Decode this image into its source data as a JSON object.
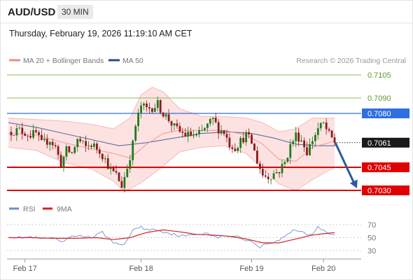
{
  "header": {
    "symbol": "AUD/USD",
    "timeframe": "30 MIN",
    "datetime": "Thursday, February 19, 2026 11:19:10 AM CET"
  },
  "legend": {
    "ma20_label": "MA 20 + Bollinger Bands",
    "ma50_label": "MA 50",
    "credit": "Research © 2026 Trading Central",
    "rsi_label": "RSI",
    "rsi_ma_label": "9MA"
  },
  "colors": {
    "ma20": "#f08a8a",
    "ma50": "#2a4a8a",
    "band_fill": "#fcd8d8",
    "up_candle": "#1e7a1e",
    "down_candle": "#8b1a1a",
    "support": "#e00000",
    "pivot": "#2f6fe0",
    "resistance": "#86c060",
    "current_price_tag": "#1a1a1a",
    "arrow": "#2e5aa0",
    "rsi": "#6b8fd6",
    "rsi_ma": "#d82020"
  },
  "chart_data": [
    {
      "type": "candlestick",
      "instrument": "AUD/USD",
      "interval": "30 MIN",
      "ylim": [
        0.7025,
        0.7112
      ],
      "x_ticks": [
        "Feb 17",
        "Feb 18",
        "Feb 19",
        "Feb 20"
      ],
      "levels": [
        {
          "value": 0.7105,
          "label": "0.7105",
          "role": "resistance"
        },
        {
          "value": 0.709,
          "label": "0.7090",
          "role": "resistance"
        },
        {
          "value": 0.708,
          "label": "0.7080",
          "role": "pivot"
        },
        {
          "value": 0.7061,
          "label": "0.7061",
          "role": "last"
        },
        {
          "value": 0.7045,
          "label": "0.7045",
          "role": "support"
        },
        {
          "value": 0.703,
          "label": "0.7030",
          "role": "support"
        }
      ],
      "last_price": 0.7061,
      "projection": {
        "from": 0.7061,
        "to": 0.703
      },
      "close_path": [
        [
          0,
          0.7068
        ],
        [
          4,
          0.7069
        ],
        [
          8,
          0.7066
        ],
        [
          10,
          0.7067
        ],
        [
          12,
          0.706
        ],
        [
          15,
          0.7063
        ],
        [
          17,
          0.7058
        ],
        [
          19,
          0.7047
        ],
        [
          21,
          0.7056
        ],
        [
          23,
          0.7054
        ],
        [
          25,
          0.7063
        ],
        [
          28,
          0.7058
        ],
        [
          30,
          0.706
        ],
        [
          33,
          0.7056
        ],
        [
          35,
          0.705
        ],
        [
          37,
          0.7043
        ],
        [
          39,
          0.704
        ],
        [
          41,
          0.7033
        ],
        [
          43,
          0.7045
        ],
        [
          45,
          0.706
        ],
        [
          46,
          0.7072
        ],
        [
          48,
          0.7085
        ],
        [
          50,
          0.7083
        ],
        [
          52,
          0.7084
        ],
        [
          54,
          0.7086
        ],
        [
          56,
          0.708
        ],
        [
          58,
          0.7076
        ],
        [
          60,
          0.7071
        ],
        [
          62,
          0.7068
        ],
        [
          64,
          0.7066
        ],
        [
          66,
          0.7066
        ],
        [
          68,
          0.7065
        ],
        [
          70,
          0.7068
        ],
        [
          72,
          0.7072
        ],
        [
          74,
          0.7076
        ],
        [
          76,
          0.707
        ],
        [
          78,
          0.7068
        ],
        [
          80,
          0.706
        ],
        [
          82,
          0.7058
        ],
        [
          84,
          0.7062
        ],
        [
          86,
          0.7066
        ],
        [
          88,
          0.7061
        ],
        [
          90,
          0.7049
        ],
        [
          92,
          0.704
        ],
        [
          94,
          0.7039
        ],
        [
          96,
          0.7041
        ],
        [
          98,
          0.7043
        ],
        [
          100,
          0.7048
        ],
        [
          102,
          0.7059
        ],
        [
          104,
          0.7066
        ],
        [
          106,
          0.7063
        ],
        [
          108,
          0.7055
        ],
        [
          110,
          0.7063
        ],
        [
          112,
          0.707
        ],
        [
          114,
          0.7073
        ],
        [
          116,
          0.7066
        ],
        [
          118,
          0.7061
        ]
      ],
      "ma20_path": [
        [
          0,
          0.7067
        ],
        [
          10,
          0.7066
        ],
        [
          20,
          0.7061
        ],
        [
          30,
          0.7057
        ],
        [
          38,
          0.7054
        ],
        [
          44,
          0.7051
        ],
        [
          50,
          0.706
        ],
        [
          56,
          0.7067
        ],
        [
          62,
          0.7069
        ],
        [
          70,
          0.7069
        ],
        [
          78,
          0.7069
        ],
        [
          86,
          0.7066
        ],
        [
          92,
          0.706
        ],
        [
          98,
          0.705
        ],
        [
          104,
          0.7049
        ],
        [
          110,
          0.7058
        ],
        [
          118,
          0.7062
        ]
      ],
      "ma50_path": [
        [
          0,
          0.7074
        ],
        [
          10,
          0.7071
        ],
        [
          20,
          0.7067
        ],
        [
          30,
          0.7063
        ],
        [
          40,
          0.7059
        ],
        [
          50,
          0.7061
        ],
        [
          60,
          0.7064
        ],
        [
          70,
          0.7067
        ],
        [
          80,
          0.7068
        ],
        [
          88,
          0.7067
        ],
        [
          96,
          0.7064
        ],
        [
          104,
          0.706
        ],
        [
          112,
          0.7059
        ],
        [
          118,
          0.7059
        ]
      ],
      "bollinger_upper_path": [
        [
          0,
          0.7077
        ],
        [
          10,
          0.7076
        ],
        [
          20,
          0.7075
        ],
        [
          30,
          0.7073
        ],
        [
          38,
          0.707
        ],
        [
          44,
          0.7077
        ],
        [
          48,
          0.7092
        ],
        [
          52,
          0.7097
        ],
        [
          56,
          0.7094
        ],
        [
          62,
          0.7083
        ],
        [
          70,
          0.7078
        ],
        [
          78,
          0.7078
        ],
        [
          86,
          0.7077
        ],
        [
          92,
          0.7074
        ],
        [
          98,
          0.7068
        ],
        [
          104,
          0.707
        ],
        [
          110,
          0.7077
        ],
        [
          118,
          0.7077
        ]
      ],
      "bollinger_lower_path": [
        [
          0,
          0.7058
        ],
        [
          10,
          0.7056
        ],
        [
          20,
          0.7048
        ],
        [
          30,
          0.7044
        ],
        [
          38,
          0.7036
        ],
        [
          42,
          0.7029
        ],
        [
          48,
          0.7035
        ],
        [
          54,
          0.7043
        ],
        [
          62,
          0.7055
        ],
        [
          70,
          0.7058
        ],
        [
          78,
          0.7059
        ],
        [
          86,
          0.7054
        ],
        [
          92,
          0.7044
        ],
        [
          98,
          0.7034
        ],
        [
          104,
          0.703
        ],
        [
          110,
          0.7037
        ],
        [
          118,
          0.7045
        ]
      ]
    },
    {
      "type": "line",
      "indicator": "RSI",
      "ylim": [
        20,
        80
      ],
      "y_ticks": [
        70,
        50,
        30
      ],
      "series": [
        {
          "name": "RSI",
          "points": [
            [
              0,
              52
            ],
            [
              4,
              50
            ],
            [
              8,
              51
            ],
            [
              12,
              48
            ],
            [
              16,
              50
            ],
            [
              19,
              42
            ],
            [
              22,
              50
            ],
            [
              26,
              54
            ],
            [
              30,
              50
            ],
            [
              34,
              58
            ],
            [
              37,
              46
            ],
            [
              40,
              38
            ],
            [
              42,
              40
            ],
            [
              45,
              62
            ],
            [
              48,
              66
            ],
            [
              50,
              63
            ],
            [
              54,
              62
            ],
            [
              57,
              58
            ],
            [
              60,
              55
            ],
            [
              64,
              52
            ],
            [
              68,
              55
            ],
            [
              72,
              58
            ],
            [
              75,
              50
            ],
            [
              78,
              52
            ],
            [
              82,
              53
            ],
            [
              85,
              48
            ],
            [
              88,
              44
            ],
            [
              91,
              36
            ],
            [
              94,
              41
            ],
            [
              97,
              44
            ],
            [
              100,
              52
            ],
            [
              103,
              62
            ],
            [
              106,
              60
            ],
            [
              108,
              55
            ],
            [
              110,
              56
            ],
            [
              112,
              66
            ],
            [
              114,
              62
            ],
            [
              116,
              57
            ],
            [
              118,
              55
            ]
          ]
        },
        {
          "name": "9MA",
          "points": [
            [
              0,
              50
            ],
            [
              8,
              50
            ],
            [
              16,
              49
            ],
            [
              24,
              49
            ],
            [
              32,
              50
            ],
            [
              38,
              47
            ],
            [
              44,
              50
            ],
            [
              50,
              58
            ],
            [
              56,
              62
            ],
            [
              62,
              59
            ],
            [
              68,
              55
            ],
            [
              74,
              54
            ],
            [
              80,
              52
            ],
            [
              86,
              48
            ],
            [
              92,
              42
            ],
            [
              98,
              42
            ],
            [
              104,
              48
            ],
            [
              110,
              54
            ],
            [
              116,
              57
            ],
            [
              119,
              58
            ]
          ]
        }
      ]
    }
  ]
}
